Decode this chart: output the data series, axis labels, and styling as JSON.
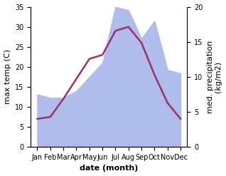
{
  "months": [
    "Jan",
    "Feb",
    "Mar",
    "Apr",
    "May",
    "Jun",
    "Jul",
    "Aug",
    "Sep",
    "Oct",
    "Nov",
    "Dec"
  ],
  "temp": [
    7,
    7.5,
    12,
    17,
    22,
    23,
    29,
    30,
    26,
    18,
    11,
    7
  ],
  "precip_right": [
    7.5,
    7.0,
    7.0,
    8.0,
    10.0,
    12.0,
    20.0,
    19.5,
    15.5,
    18.0,
    11.0,
    10.5
  ],
  "temp_color": "#993366",
  "precip_fill_color": "#b0bcec",
  "temp_ylim": [
    0,
    35
  ],
  "precip_ylim": [
    0,
    20
  ],
  "temp_yticks": [
    0,
    5,
    10,
    15,
    20,
    25,
    30,
    35
  ],
  "precip_yticks": [
    0,
    5,
    10,
    15,
    20
  ],
  "xlabel": "date (month)",
  "ylabel_left": "max temp (C)",
  "ylabel_right": "med. precipitation\n(kg/m2)",
  "axis_fontsize": 8,
  "tick_fontsize": 7,
  "line_width": 1.8,
  "background_color": "#ffffff"
}
